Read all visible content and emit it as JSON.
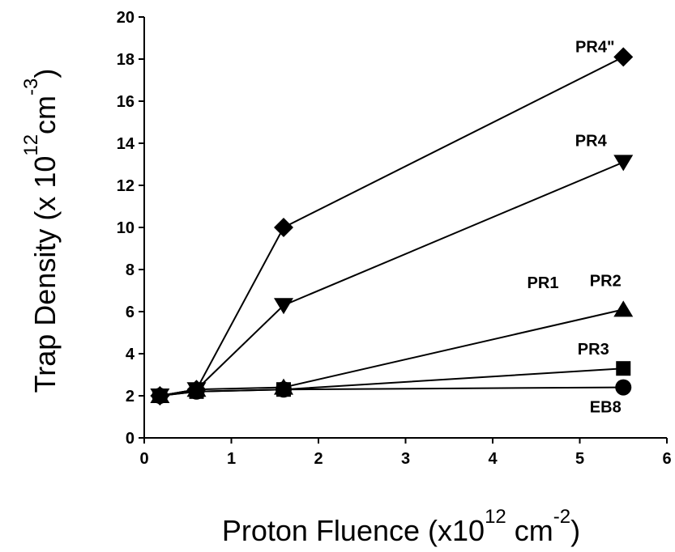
{
  "chart_data": {
    "type": "line",
    "xlabel_parts": [
      "Proton Fluence (x10",
      "12",
      " cm",
      "-2",
      ")"
    ],
    "ylabel_parts": [
      "Trap Density (x 10",
      "12",
      "cm",
      "-3",
      ")"
    ],
    "xlim": [
      0,
      6
    ],
    "xticks": [
      0,
      1,
      2,
      3,
      4,
      5,
      6
    ],
    "ylim": [
      0,
      20
    ],
    "yticks": [
      0,
      2,
      4,
      6,
      8,
      10,
      12,
      14,
      16,
      18,
      20
    ],
    "x": [
      0.18,
      0.6,
      1.6,
      5.5
    ],
    "series": [
      {
        "name": "PR4\"",
        "color": "#000000",
        "marker": "diamond",
        "values": [
          2.0,
          2.3,
          10.0,
          18.1
        ]
      },
      {
        "name": "PR4",
        "color": "#000000",
        "marker": "triangle-down",
        "values": [
          2.0,
          2.3,
          6.3,
          13.1
        ]
      },
      {
        "name": "PR2",
        "color": "#000000",
        "marker": "triangle-up",
        "values": [
          2.0,
          2.3,
          2.4,
          6.1
        ]
      },
      {
        "name": "PR3",
        "color": "#000000",
        "marker": "square",
        "values": [
          2.0,
          2.2,
          2.3,
          3.3
        ]
      },
      {
        "name": "EB8",
        "color": "#000000",
        "marker": "circle",
        "values": [
          2.0,
          2.2,
          2.3,
          2.4
        ]
      }
    ],
    "annotations": [
      "PR1"
    ]
  }
}
